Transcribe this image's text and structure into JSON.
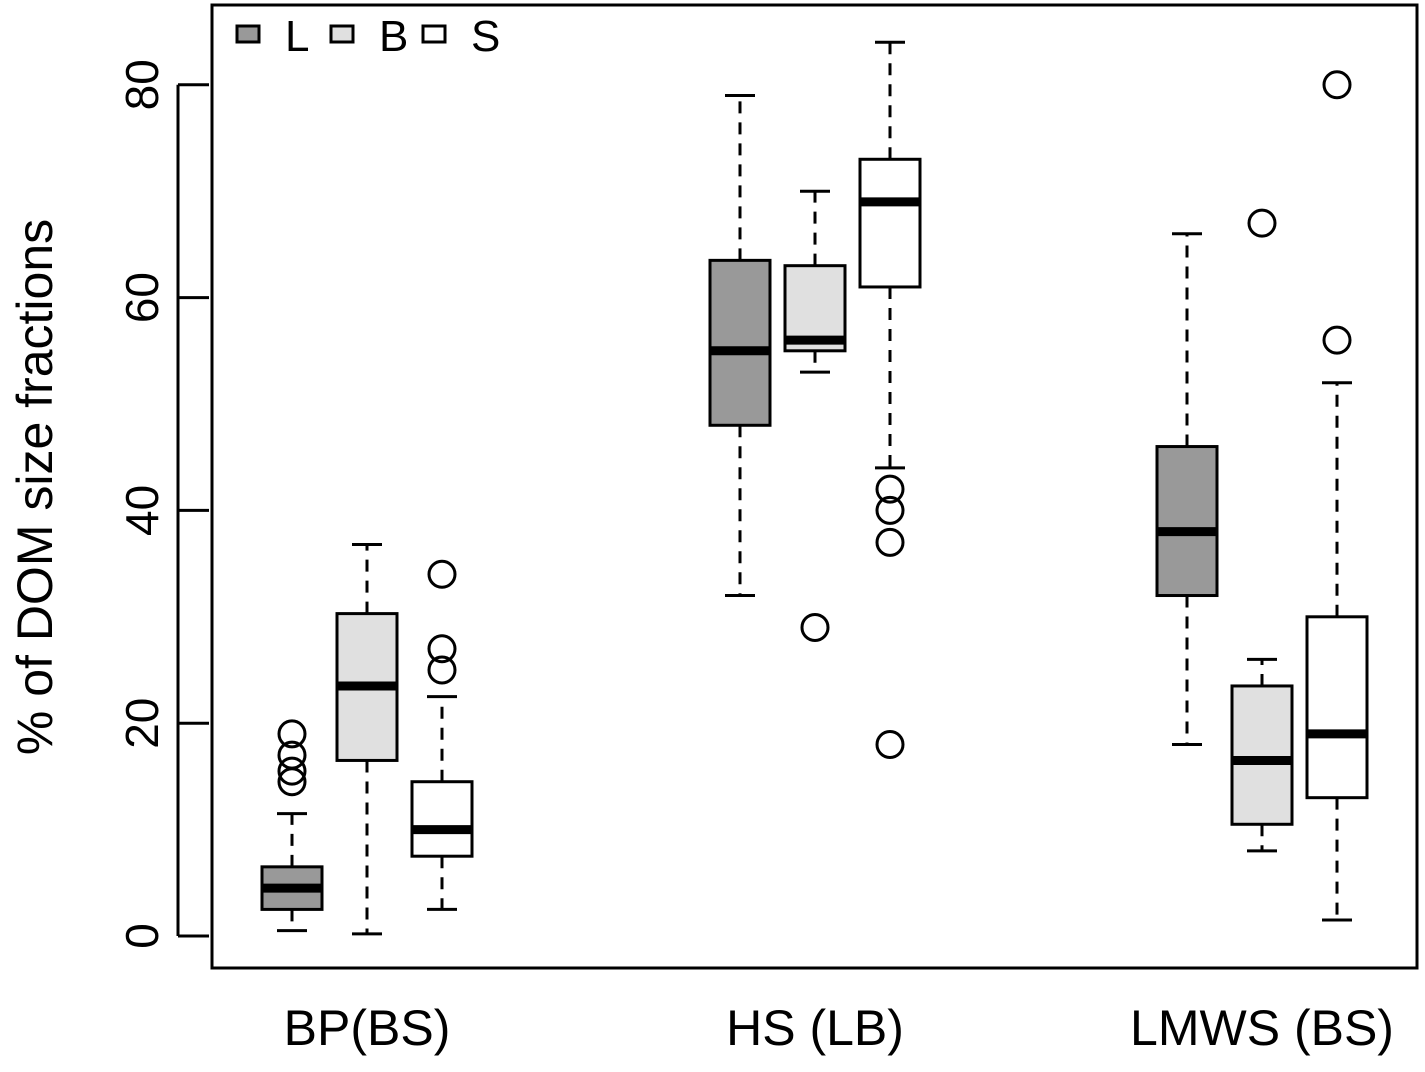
{
  "chart_data": {
    "type": "boxplot",
    "title": "",
    "xlabel": "",
    "ylabel": "% of DOM size fractions",
    "ylim": [
      -4,
      86
    ],
    "yticks": [
      0,
      20,
      40,
      60,
      80
    ],
    "grid": false,
    "legend": {
      "position": "top-left",
      "entries": [
        {
          "label": "L",
          "color": "#999999"
        },
        {
          "label": "B",
          "color": "#e0e0e0"
        },
        {
          "label": "S",
          "color": "#ffffff"
        }
      ]
    },
    "categories": [
      "BP(BS)",
      "HS (LB)",
      "LMWS (BS)"
    ],
    "series": [
      {
        "name": "L",
        "color": "#999999",
        "boxes": [
          {
            "category": "BP(BS)",
            "whisker_low": 0.5,
            "q1": 2.5,
            "median": 4.5,
            "q3": 6.5,
            "whisker_high": 11.5,
            "outliers": [
              14.5,
              15.5,
              17,
              19
            ]
          },
          {
            "category": "HS (LB)",
            "whisker_low": 32,
            "q1": 48,
            "median": 55,
            "q3": 63.5,
            "whisker_high": 79,
            "outliers": []
          },
          {
            "category": "LMWS (BS)",
            "whisker_low": 18,
            "q1": 32,
            "median": 38,
            "q3": 46,
            "whisker_high": 66,
            "outliers": []
          }
        ]
      },
      {
        "name": "B",
        "color": "#e0e0e0",
        "boxes": [
          {
            "category": "BP(BS)",
            "whisker_low": 0.2,
            "q1": 16.5,
            "median": 23.5,
            "q3": 30.3,
            "whisker_high": 36.8,
            "outliers": []
          },
          {
            "category": "HS (LB)",
            "whisker_low": 53,
            "q1": 55,
            "median": 56,
            "q3": 63,
            "whisker_high": 70,
            "outliers": [
              29
            ]
          },
          {
            "category": "LMWS (BS)",
            "whisker_low": 8,
            "q1": 10.5,
            "median": 16.5,
            "q3": 23.5,
            "whisker_high": 26,
            "outliers": [
              67
            ]
          }
        ]
      },
      {
        "name": "S",
        "color": "#ffffff",
        "boxes": [
          {
            "category": "BP(BS)",
            "whisker_low": 2.5,
            "q1": 7.5,
            "median": 10,
            "q3": 14.5,
            "whisker_high": 22.5,
            "outliers": [
              25,
              27,
              34
            ]
          },
          {
            "category": "HS (LB)",
            "whisker_low": 44,
            "q1": 61,
            "median": 69,
            "q3": 73,
            "whisker_high": 84,
            "outliers": [
              18,
              37,
              40,
              42
            ]
          },
          {
            "category": "LMWS (BS)",
            "whisker_low": 1.5,
            "q1": 13,
            "median": 19,
            "q3": 30,
            "whisker_high": 52,
            "outliers": [
              56,
              80
            ]
          }
        ]
      }
    ]
  }
}
